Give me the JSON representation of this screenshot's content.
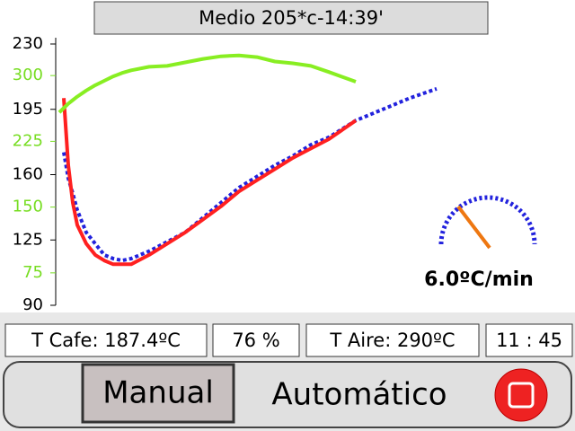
{
  "header": {
    "title": "Medio 205*c-14:39'"
  },
  "chart_data": {
    "type": "line",
    "x": [
      0,
      0.5,
      1,
      1.5,
      2,
      3,
      4,
      5,
      6,
      7,
      8,
      10,
      12,
      14,
      16,
      18,
      20,
      22,
      24,
      26,
      28,
      30,
      33,
      36,
      39,
      42
    ],
    "xlim": [
      0,
      57
    ],
    "ylim": [
      90,
      230
    ],
    "yticks": [
      90,
      125,
      160,
      195,
      230
    ],
    "y2lim": [
      38,
      336
    ],
    "y2ticks": [
      75,
      150,
      225,
      300
    ],
    "y2color": "#77dd22",
    "series": [
      {
        "color": "#2222dd",
        "dashed": true,
        "values": [
          null,
          172,
          158,
          150,
          141,
          129,
          123,
          117,
          115,
          114,
          115,
          119,
          124,
          129,
          137,
          145,
          153,
          159,
          165,
          170,
          176,
          180,
          189,
          195,
          201,
          206
        ]
      },
      {
        "color": "#ff2020",
        "dashed": false,
        "values": [
          null,
          201,
          165,
          145,
          133,
          123,
          117,
          114,
          112,
          112,
          112,
          117,
          123,
          129,
          136,
          143,
          151,
          157,
          163,
          169,
          174,
          179,
          189,
          null,
          null,
          null
        ]
      },
      {
        "color": "#88ee22",
        "dashed": false,
        "axis": "y2",
        "values": [
          258,
          263,
          268,
          272,
          276,
          283,
          289,
          294,
          299,
          303,
          306,
          310,
          311,
          315,
          319,
          322,
          323,
          321,
          316,
          314,
          311,
          304,
          293,
          null,
          null,
          null
        ]
      }
    ]
  },
  "gauge": {
    "label": "6.0ºC/min"
  },
  "status": {
    "t_cafe": "T Cafe: 187.4ºC",
    "percent": "76 %",
    "t_aire": "T Aire: 290ºC",
    "time": "11 : 45"
  },
  "buttons": {
    "manual": "Manual",
    "auto": "Automático"
  }
}
